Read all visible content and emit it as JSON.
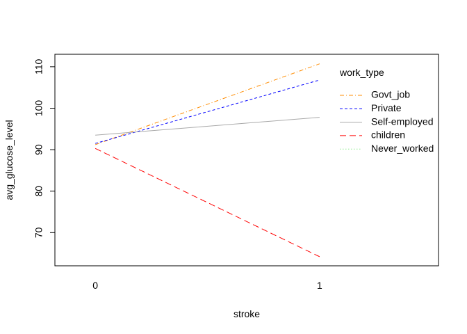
{
  "chart_data": {
    "type": "line",
    "title": "",
    "xlabel": "stroke",
    "ylabel": "avg_glucose_level",
    "categories": [
      "0",
      "1"
    ],
    "x": [
      0,
      1
    ],
    "xlim": [
      -0.18,
      1.53
    ],
    "ylim": [
      62.0,
      113.0
    ],
    "yticks": [
      70,
      80,
      90,
      100,
      110
    ],
    "grid": false,
    "legend": {
      "title": "work_type",
      "placement": "top-right (inside plot)"
    },
    "series": [
      {
        "name": "Govt_job",
        "values": [
          91.2,
          110.7
        ],
        "color": "#FF8C00",
        "dash": "6,3,1,3"
      },
      {
        "name": "Private",
        "values": [
          91.5,
          106.8
        ],
        "color": "#0000FF",
        "dash": "4,3"
      },
      {
        "name": "Self-employed",
        "values": [
          93.5,
          97.8
        ],
        "color": "#A9A9A9",
        "dash": ""
      },
      {
        "name": "children",
        "values": [
          90.3,
          64.2
        ],
        "color": "#FF0000",
        "dash": "9,5"
      },
      {
        "name": "Never_worked",
        "values": [
          null,
          null
        ],
        "color": "#90EE90",
        "dash": "1.5,2.5"
      }
    ]
  }
}
